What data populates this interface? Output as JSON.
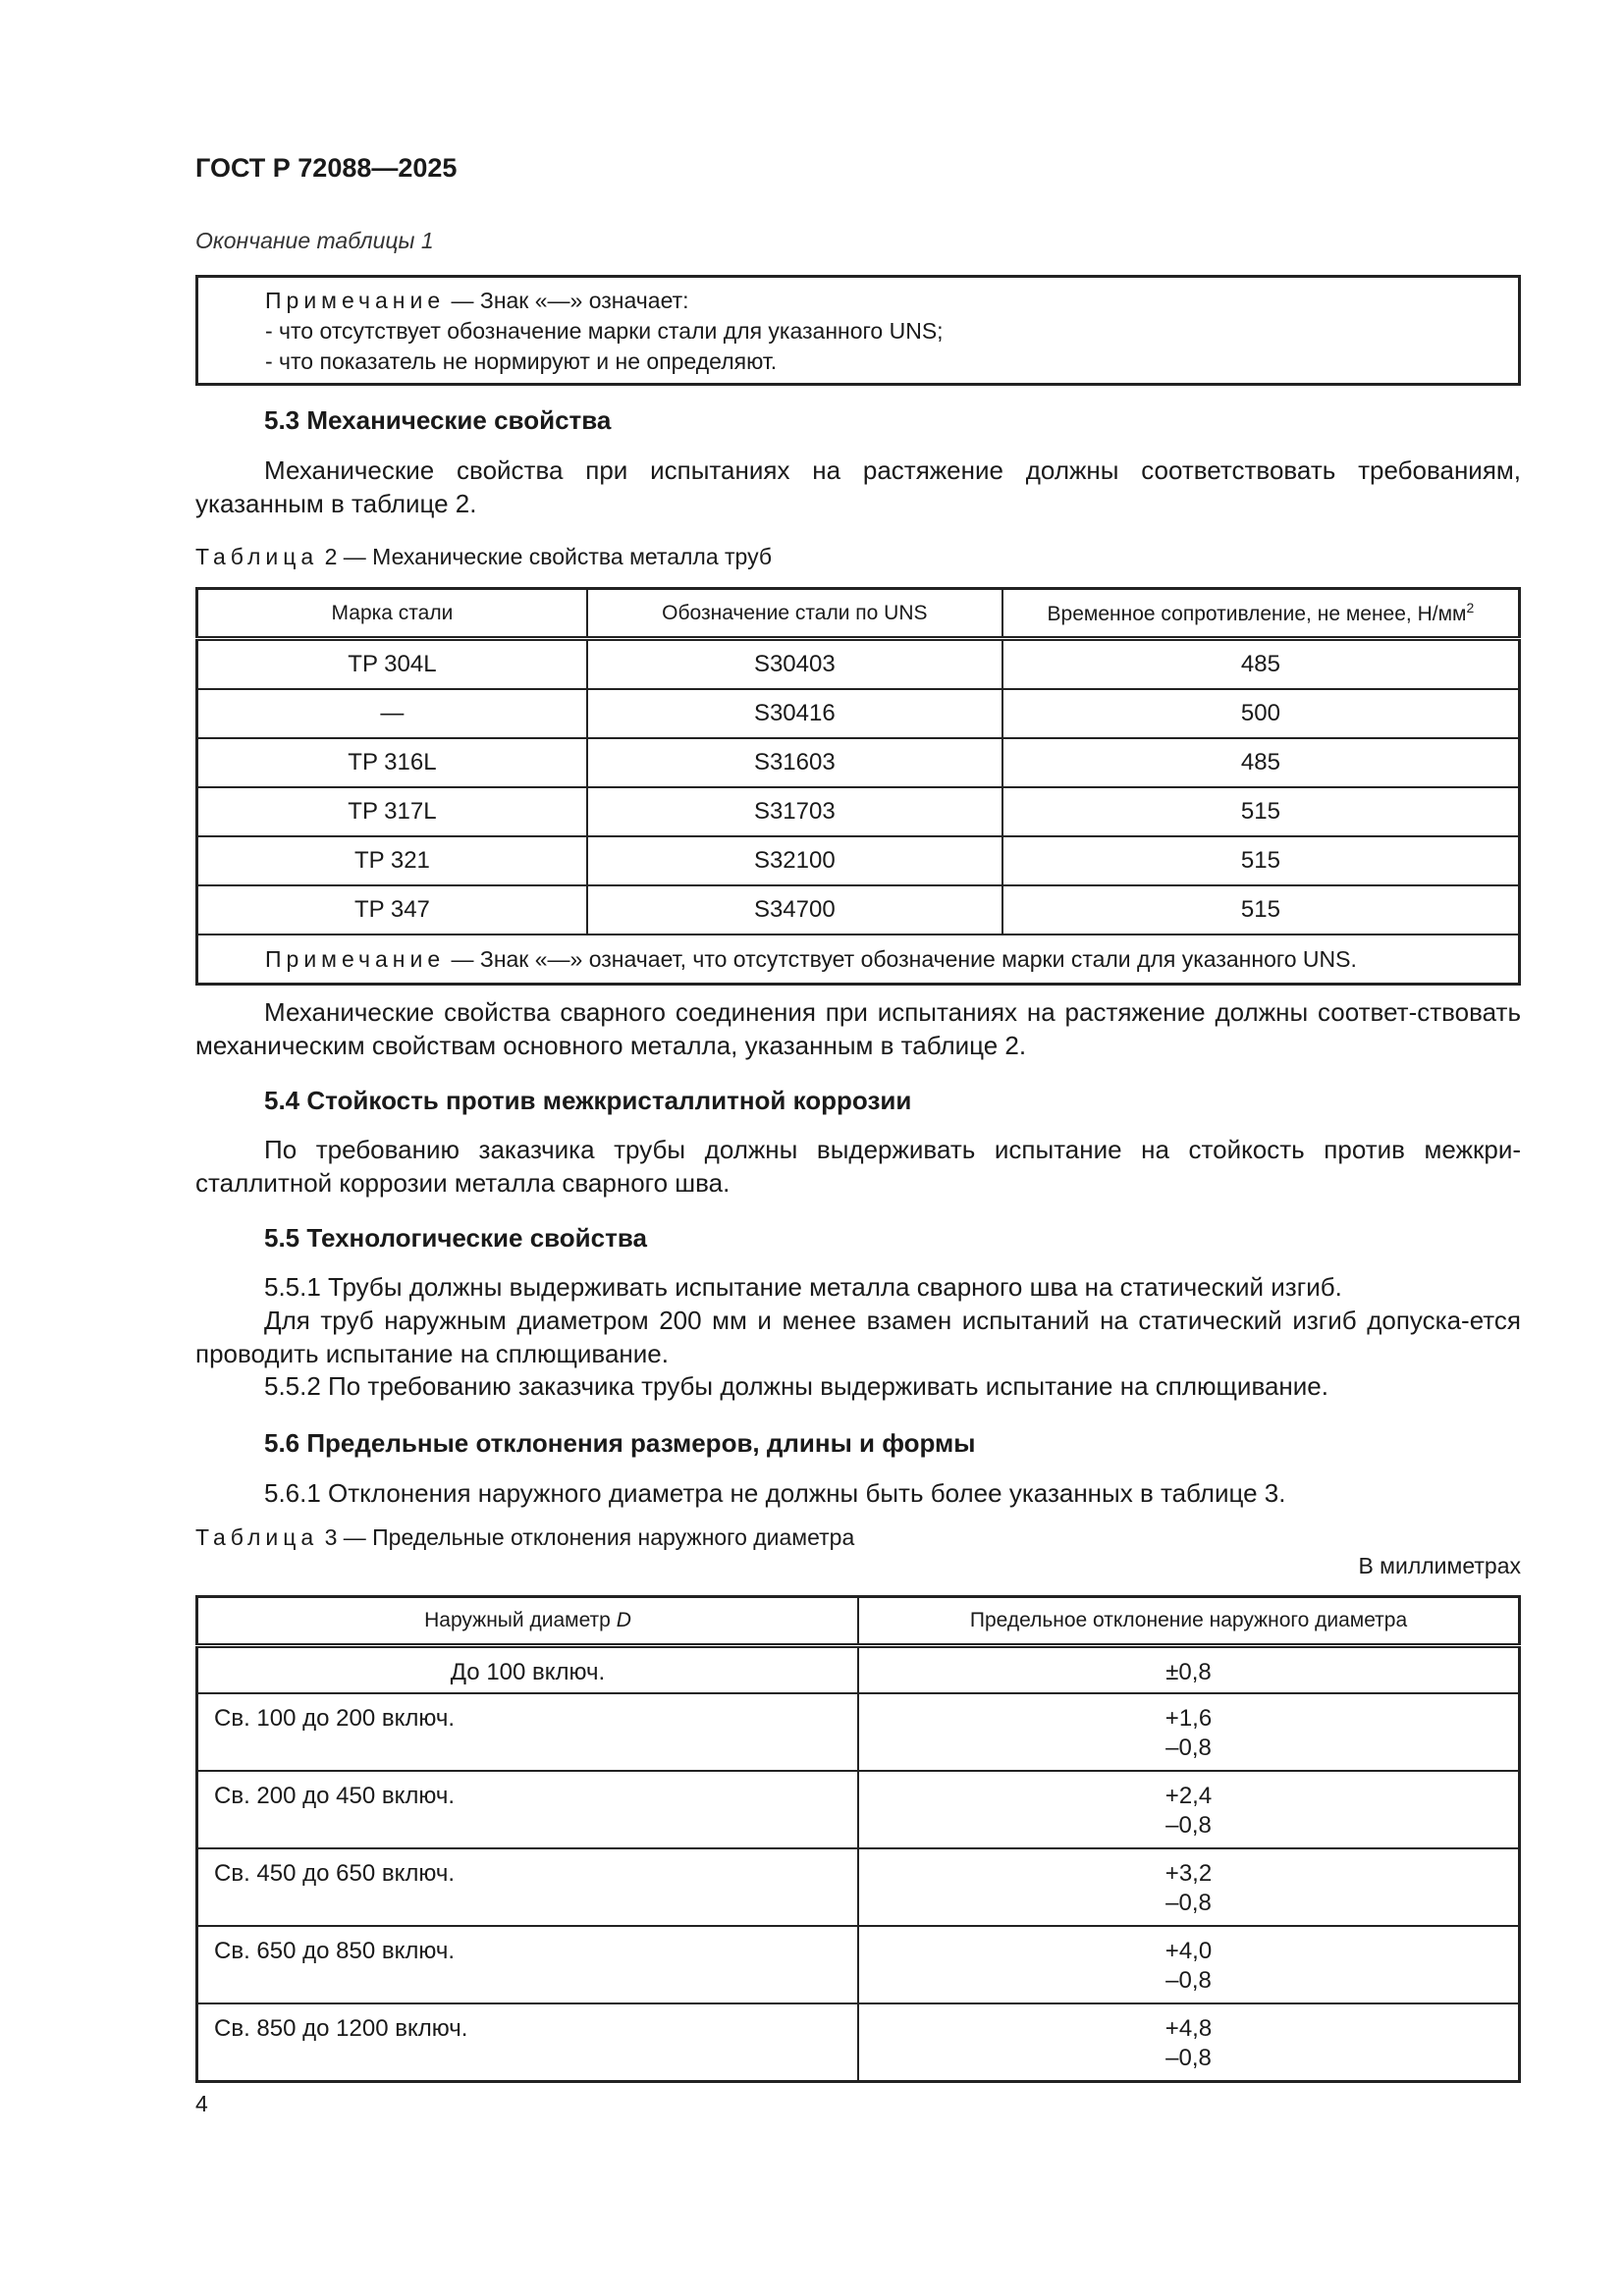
{
  "header": {
    "doc_id": "ГОСТ Р 72088—2025"
  },
  "table1_end": {
    "caption": "Окончание таблицы 1",
    "note_label": "Примечание",
    "note_lines": [
      " — Знак «—» означает:",
      "- что отсутствует обозначение марки стали для указанного UNS;",
      "- что показатель не нормируют и не определяют."
    ]
  },
  "s53": {
    "heading": "5.3 Механические свойства",
    "para1": "Механические свойства при испытаниях на растяжение должны соответствовать требованиям, указанным в таблице 2.",
    "para2": "Механические свойства сварного соединения при испытаниях на растяжение должны соответ-ствовать механическим свойствам основного металла, указанным в таблице 2."
  },
  "table2": {
    "caption_label": "Таблица",
    "caption_rest": " 2 — Механические свойства металла труб",
    "headers": [
      "Марка стали",
      "Обозначение стали по UNS",
      "Временное сопротивление, не менее, Н/мм",
      "2"
    ],
    "rows": [
      [
        "TP 304L",
        "S30403",
        "485"
      ],
      [
        "—",
        "S30416",
        "500"
      ],
      [
        "TP 316L",
        "S31603",
        "485"
      ],
      [
        "TP 317L",
        "S31703",
        "515"
      ],
      [
        "TP 321",
        "S32100",
        "515"
      ],
      [
        "TP 347",
        "S34700",
        "515"
      ]
    ],
    "note_label": "Примечание",
    "note_text": " — Знак «—» означает, что отсутствует обозначение марки стали для указанного UNS."
  },
  "s54": {
    "heading": "5.4 Стойкость против межкристаллитной коррозии",
    "para": "По требованию заказчика трубы должны выдерживать испытание на стойкость против межкри-сталлитной коррозии металла сварного шва."
  },
  "s55": {
    "heading": "5.5 Технологические свойства",
    "p1": "5.5.1 Трубы должны выдерживать испытание металла сварного шва на статический изгиб.",
    "p2": "Для труб наружным диаметром 200 мм и менее взамен испытаний на статический изгиб допуска-ется проводить испытание на сплющивание.",
    "p3": "5.5.2 По требованию заказчика трубы должны выдерживать испытание на сплющивание."
  },
  "s56": {
    "heading": "5.6 Предельные отклонения размеров, длины и формы",
    "p1": "5.6.1 Отклонения наружного диаметра не должны быть более указанных в таблице 3."
  },
  "table3": {
    "caption_label": "Таблица",
    "caption_rest": " 3 — Предельные отклонения наружного диаметра",
    "units": "В миллиметрах",
    "headers": [
      "Наружный диаметр ",
      "D",
      "Предельное отклонение наружного диаметра"
    ],
    "rows": [
      [
        "До 100 включ.",
        "±0,8",
        ""
      ],
      [
        "Св. 100 до 200 включ.",
        "+1,6",
        "–0,8"
      ],
      [
        "Св. 200 до 450 включ.",
        "+2,4",
        "–0,8"
      ],
      [
        "Св. 450 до 650 включ.",
        "+3,2",
        "–0,8"
      ],
      [
        "Св. 650 до 850 включ.",
        "+4,0",
        "–0,8"
      ],
      [
        "Св. 850 до 1200 включ.",
        "+4,8",
        "–0,8"
      ]
    ]
  },
  "footer": {
    "page_number": "4"
  }
}
